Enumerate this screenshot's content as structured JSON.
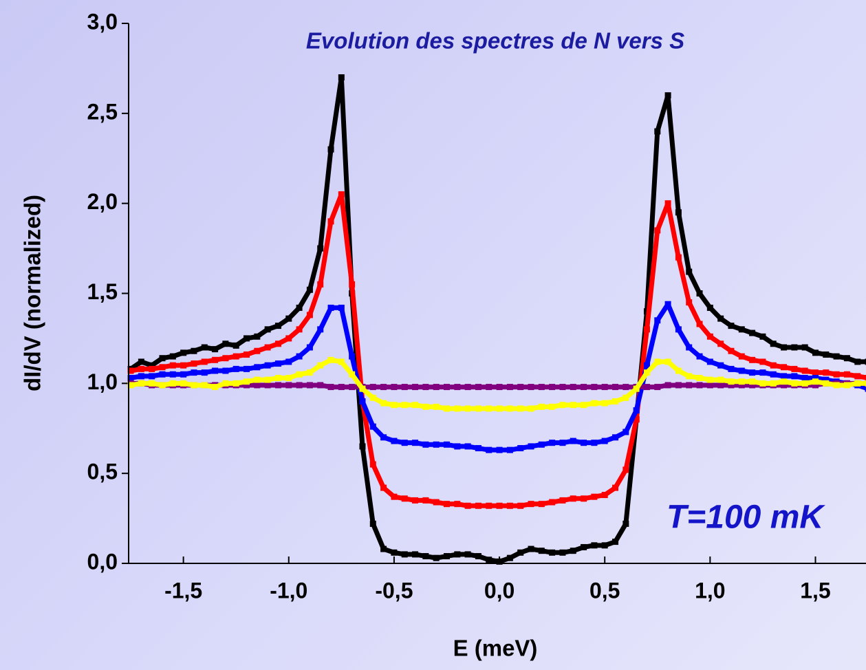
{
  "chart_data": {
    "type": "scatter",
    "title": "Evolution des spectres de N vers S",
    "annotation": "T=100 mK",
    "xlabel": "E (meV)",
    "ylabel": "dI/dV (normalized)",
    "xlim": [
      -1.76,
      1.74
    ],
    "ylim": [
      0,
      3
    ],
    "xticks": [
      {
        "value": -1.5,
        "label": "-1,5"
      },
      {
        "value": -1,
        "label": "-1,0"
      },
      {
        "value": -0.5,
        "label": "-0,5"
      },
      {
        "value": 0,
        "label": "0,0"
      },
      {
        "value": 0.5,
        "label": "0,5"
      },
      {
        "value": 1,
        "label": "1,0"
      },
      {
        "value": 1.5,
        "label": "1,5"
      }
    ],
    "yticks": [
      {
        "value": 0,
        "label": "0,0"
      },
      {
        "value": 0.5,
        "label": "0,5"
      },
      {
        "value": 1,
        "label": "1,0"
      },
      {
        "value": 1.5,
        "label": "1,5"
      },
      {
        "value": 2,
        "label": "2,0"
      },
      {
        "value": 2.5,
        "label": "2,5"
      },
      {
        "value": 3,
        "label": "3,0"
      }
    ],
    "x": [
      -1.75,
      -1.7,
      -1.65,
      -1.6,
      -1.55,
      -1.5,
      -1.45,
      -1.4,
      -1.35,
      -1.3,
      -1.25,
      -1.2,
      -1.15,
      -1.1,
      -1.05,
      -1,
      -0.95,
      -0.9,
      -0.85,
      -0.8,
      -0.75,
      -0.7,
      -0.65,
      -0.6,
      -0.55,
      -0.5,
      -0.45,
      -0.4,
      -0.35,
      -0.3,
      -0.25,
      -0.2,
      -0.15,
      -0.1,
      -0.05,
      0,
      0.05,
      0.1,
      0.15,
      0.2,
      0.25,
      0.3,
      0.35,
      0.4,
      0.45,
      0.5,
      0.55,
      0.6,
      0.65,
      0.7,
      0.75,
      0.8,
      0.85,
      0.9,
      0.95,
      1,
      1.05,
      1.1,
      1.15,
      1.2,
      1.25,
      1.3,
      1.35,
      1.4,
      1.45,
      1.5,
      1.55,
      1.6,
      1.65,
      1.7,
      1.75
    ],
    "series": [
      {
        "color": "#000000",
        "values": [
          1.08,
          1.12,
          1.1,
          1.14,
          1.15,
          1.17,
          1.18,
          1.2,
          1.19,
          1.22,
          1.21,
          1.25,
          1.26,
          1.3,
          1.32,
          1.36,
          1.42,
          1.52,
          1.75,
          2.3,
          2.7,
          1.5,
          0.65,
          0.22,
          0.08,
          0.06,
          0.05,
          0.05,
          0.04,
          0.03,
          0.04,
          0.05,
          0.05,
          0.04,
          0.02,
          0.01,
          0.03,
          0.06,
          0.08,
          0.07,
          0.06,
          0.06,
          0.07,
          0.09,
          0.1,
          0.1,
          0.12,
          0.22,
          0.8,
          1.4,
          2.4,
          2.6,
          1.95,
          1.62,
          1.5,
          1.42,
          1.36,
          1.32,
          1.3,
          1.28,
          1.26,
          1.22,
          1.2,
          1.2,
          1.2,
          1.17,
          1.16,
          1.15,
          1.14,
          1.12,
          1.12
        ]
      },
      {
        "color": "#ff0000",
        "values": [
          1.07,
          1.08,
          1.08,
          1.09,
          1.1,
          1.1,
          1.11,
          1.12,
          1.13,
          1.14,
          1.15,
          1.16,
          1.18,
          1.2,
          1.22,
          1.25,
          1.3,
          1.38,
          1.55,
          1.9,
          2.05,
          1.55,
          0.9,
          0.55,
          0.42,
          0.37,
          0.36,
          0.35,
          0.35,
          0.34,
          0.33,
          0.33,
          0.32,
          0.32,
          0.32,
          0.32,
          0.32,
          0.32,
          0.33,
          0.33,
          0.34,
          0.35,
          0.36,
          0.36,
          0.37,
          0.38,
          0.42,
          0.52,
          0.8,
          1.3,
          1.85,
          2.0,
          1.7,
          1.45,
          1.33,
          1.26,
          1.22,
          1.18,
          1.15,
          1.13,
          1.12,
          1.1,
          1.09,
          1.08,
          1.07,
          1.06,
          1.06,
          1.05,
          1.05,
          1.04,
          1.03
        ]
      },
      {
        "color": "#0000ff",
        "values": [
          1.03,
          1.04,
          1.04,
          1.05,
          1.05,
          1.05,
          1.06,
          1.06,
          1.07,
          1.07,
          1.08,
          1.08,
          1.09,
          1.1,
          1.11,
          1.12,
          1.15,
          1.2,
          1.3,
          1.42,
          1.42,
          1.15,
          0.9,
          0.76,
          0.7,
          0.68,
          0.67,
          0.67,
          0.66,
          0.66,
          0.66,
          0.65,
          0.65,
          0.64,
          0.63,
          0.63,
          0.63,
          0.64,
          0.65,
          0.66,
          0.67,
          0.67,
          0.68,
          0.67,
          0.67,
          0.68,
          0.7,
          0.73,
          0.85,
          1.1,
          1.35,
          1.44,
          1.3,
          1.2,
          1.15,
          1.12,
          1.1,
          1.08,
          1.07,
          1.06,
          1.06,
          1.05,
          1.04,
          1.04,
          1.03,
          1.03,
          1.02,
          1.01,
          1.0,
          0.99,
          0.97
        ]
      },
      {
        "color": "#800080",
        "values": [
          1.0,
          1.0,
          0.99,
          0.99,
          0.99,
          0.99,
          0.99,
          0.99,
          0.99,
          0.99,
          0.99,
          0.99,
          0.99,
          0.99,
          0.99,
          0.99,
          0.99,
          0.99,
          0.99,
          0.98,
          0.98,
          0.98,
          0.98,
          0.98,
          0.98,
          0.98,
          0.98,
          0.98,
          0.98,
          0.98,
          0.98,
          0.98,
          0.98,
          0.98,
          0.98,
          0.98,
          0.98,
          0.98,
          0.98,
          0.98,
          0.98,
          0.98,
          0.98,
          0.98,
          0.98,
          0.98,
          0.98,
          0.98,
          0.98,
          0.98,
          0.98,
          0.99,
          0.99,
          0.99,
          0.99,
          0.99,
          0.99,
          0.99,
          0.99,
          0.99,
          0.99,
          0.99,
          0.99,
          0.99,
          0.99,
          0.99,
          1.0,
          1.0,
          1.0,
          1.0,
          1.0
        ]
      },
      {
        "color": "#ffff00",
        "values": [
          0.99,
          1.0,
          1.0,
          0.99,
          1.0,
          1.0,
          0.99,
          0.99,
          0.98,
          1.0,
          1.0,
          1.01,
          1.02,
          1.02,
          1.03,
          1.03,
          1.05,
          1.06,
          1.1,
          1.13,
          1.12,
          1.05,
          0.97,
          0.92,
          0.89,
          0.88,
          0.88,
          0.88,
          0.87,
          0.87,
          0.86,
          0.86,
          0.86,
          0.86,
          0.86,
          0.86,
          0.86,
          0.86,
          0.86,
          0.87,
          0.87,
          0.88,
          0.88,
          0.88,
          0.89,
          0.89,
          0.9,
          0.92,
          0.97,
          1.06,
          1.12,
          1.12,
          1.07,
          1.04,
          1.03,
          1.02,
          1.02,
          1.01,
          1.01,
          1.01,
          1.0,
          1.0,
          1.01,
          1.0,
          1.0,
          1.01,
          1.0,
          0.99,
          0.99,
          1.0,
          1.0
        ]
      }
    ]
  }
}
